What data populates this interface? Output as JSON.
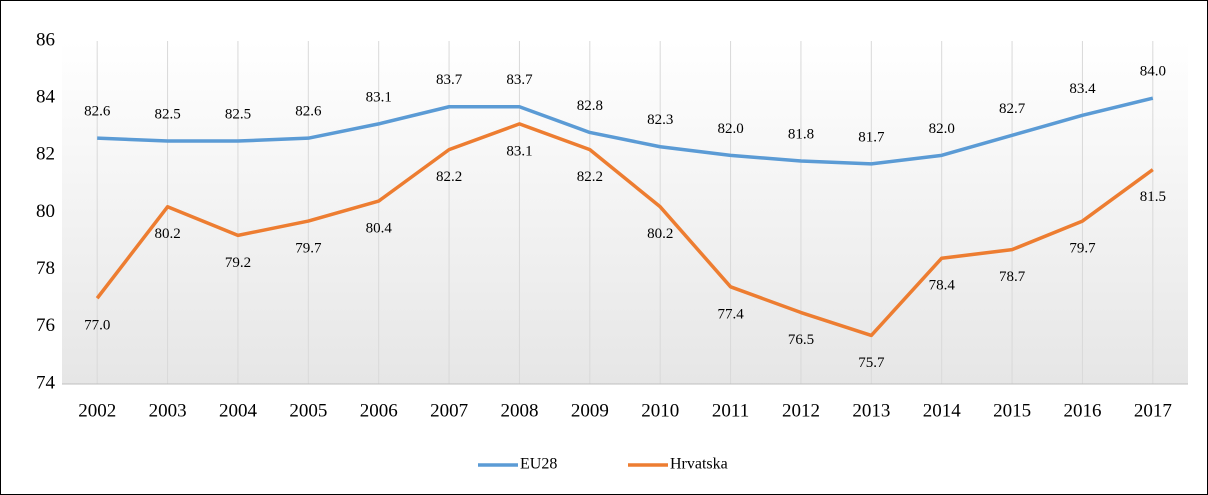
{
  "chart_data": {
    "type": "line",
    "categories": [
      "2002",
      "2003",
      "2004",
      "2005",
      "2006",
      "2007",
      "2008",
      "2009",
      "2010",
      "2011",
      "2012",
      "2013",
      "2014",
      "2015",
      "2016",
      "2017"
    ],
    "series": [
      {
        "name": "EU28",
        "color": "#5b9bd5",
        "values": [
          82.6,
          82.5,
          82.5,
          82.6,
          83.1,
          83.7,
          83.7,
          82.8,
          82.3,
          82.0,
          81.8,
          81.7,
          82.0,
          82.7,
          83.4,
          84.0
        ],
        "value_labels": [
          "82.6",
          "82.5",
          "82.5",
          "82.6",
          "83.1",
          "83.7",
          "83.7",
          "82.8",
          "82.3",
          "82.0",
          "81.8",
          "81.7",
          "82.0",
          "82.7",
          "83.4",
          "84.0"
        ]
      },
      {
        "name": "Hrvatska",
        "color": "#ed7d31",
        "values": [
          77.0,
          80.2,
          79.2,
          79.7,
          80.4,
          82.2,
          83.1,
          82.2,
          80.2,
          77.4,
          76.5,
          75.7,
          78.4,
          78.7,
          79.7,
          81.5
        ],
        "value_labels": [
          "77.0",
          "80.2",
          "79.2",
          "79.7",
          "80.4",
          "82.2",
          "83.1",
          "82.2",
          "80.2",
          "77.4",
          "76.5",
          "75.7",
          "78.4",
          "78.7",
          "79.7",
          "81.5"
        ]
      }
    ],
    "ylim": [
      74,
      86
    ],
    "yticks": [
      74,
      76,
      78,
      80,
      82,
      84,
      86
    ],
    "legend": "bottom"
  }
}
